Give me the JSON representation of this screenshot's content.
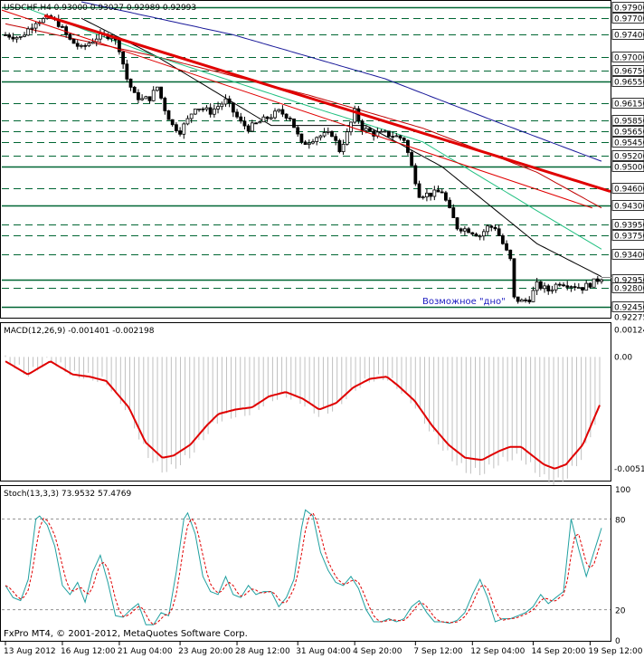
{
  "colors": {
    "background": "#ffffff",
    "candle": "#000000",
    "hline": "#006633",
    "trendline": "#e00000",
    "ma_black": "#000000",
    "ma_red": "#c00000",
    "ma_green": "#20c080",
    "ma_blue": "#1a1a9a",
    "macd_hist": "#c0c0c0",
    "macd_signal": "#e00000",
    "stoch_main": "#20a0a0",
    "stoch_signal": "#e00000",
    "annotation": "#1a1ac0"
  },
  "price_panel": {
    "title": "USDCHF,H4  0.93000 0.93027 0.92989 0.92993",
    "annotation": "Возможное \"дно\"",
    "ylim": [
      0.9227,
      0.98
    ],
    "current_price": "0.92993",
    "levels": [
      {
        "label": "0.97900",
        "value": 0.979,
        "style": "solid"
      },
      {
        "label": "0.97700",
        "value": 0.977,
        "style": "dashed"
      },
      {
        "label": "0.97400",
        "value": 0.974,
        "style": "dashed"
      },
      {
        "label": "0.97000",
        "value": 0.97,
        "style": "dashed"
      },
      {
        "label": "0.96750",
        "value": 0.9675,
        "style": "dashed"
      },
      {
        "label": "0.96550",
        "value": 0.9655,
        "style": "solid"
      },
      {
        "label": "0.96150",
        "value": 0.9615,
        "style": "dashed"
      },
      {
        "label": "0.95850",
        "value": 0.9585,
        "style": "dashed"
      },
      {
        "label": "0.95650",
        "value": 0.9565,
        "style": "dashed"
      },
      {
        "label": "0.95450",
        "value": 0.9545,
        "style": "dashed"
      },
      {
        "label": "0.95200",
        "value": 0.952,
        "style": "dashed"
      },
      {
        "label": "0.95000",
        "value": 0.95,
        "style": "solid"
      },
      {
        "label": "0.94600",
        "value": 0.946,
        "style": "dashed"
      },
      {
        "label": "0.94300",
        "value": 0.943,
        "style": "solid"
      },
      {
        "label": "0.93950",
        "value": 0.9395,
        "style": "dashed"
      },
      {
        "label": "0.93750",
        "value": 0.9375,
        "style": "dashed"
      },
      {
        "label": "0.93400",
        "value": 0.934,
        "style": "dashed"
      },
      {
        "label": "0.92950",
        "value": 0.9295,
        "style": "solid"
      },
      {
        "label": "0.92800",
        "value": 0.928,
        "style": "dashed"
      },
      {
        "label": "0.92450",
        "value": 0.9245,
        "style": "solid"
      }
    ],
    "extra_axis_labels": [
      {
        "label": "0.92275",
        "value": 0.92275
      }
    ],
    "trendlines": [
      {
        "x1": 0.07,
        "y1": 0.9775,
        "x2": 1.0,
        "y2": 0.9455,
        "width": 3
      },
      {
        "x1": 0.0,
        "y1": 0.9785,
        "x2": 0.97,
        "y2": 0.9425,
        "width": 1
      }
    ]
  },
  "macd_panel": {
    "title": "MACD(12,26,9) -0.001401 -0.002198",
    "ylim": [
      -0.0056,
      0.0015
    ],
    "axis_labels": [
      {
        "label": "0.00124",
        "value": 0.00124
      },
      {
        "label": "0.00",
        "value": 0.0
      },
      {
        "label": "-0.00510",
        "value": -0.0051
      }
    ]
  },
  "stoch_panel": {
    "title": "Stoch(13,3,3) 73.9532 57.4769",
    "ylim": [
      0,
      100
    ],
    "levels": [
      80,
      20
    ],
    "axis_labels": [
      {
        "label": "100",
        "value": 100
      },
      {
        "label": "80",
        "value": 80
      },
      {
        "label": "20",
        "value": 20
      },
      {
        "label": "0",
        "value": 0
      }
    ],
    "copyright": "FxPro MT4, © 2001-2012, MetaQuotes Software Corp."
  },
  "chart_data": {
    "type": "candlestick",
    "symbol": "USDCHF",
    "timeframe": "H4",
    "x_ticks": [
      {
        "label": "13 Aug 2012",
        "index": 0
      },
      {
        "label": "16 Aug 12:00",
        "index": 15
      },
      {
        "label": "21 Aug 04:00",
        "index": 30
      },
      {
        "label": "23 Aug 20:00",
        "index": 46
      },
      {
        "label": "28 Aug 12:00",
        "index": 61
      },
      {
        "label": "31 Aug 04:00",
        "index": 77
      },
      {
        "label": "4 Sep 20:00",
        "index": 92
      },
      {
        "label": "7 Sep 12:00",
        "index": 108
      },
      {
        "label": "12 Sep 04:00",
        "index": 123
      },
      {
        "label": "14 Sep 20:00",
        "index": 139
      },
      {
        "label": "19 Sep 12:00",
        "index": 154
      }
    ],
    "close_anchors": [
      [
        0,
        0.974
      ],
      [
        4,
        0.9735
      ],
      [
        8,
        0.9765
      ],
      [
        12,
        0.977
      ],
      [
        14,
        0.976
      ],
      [
        17,
        0.973
      ],
      [
        20,
        0.9715
      ],
      [
        24,
        0.9735
      ],
      [
        28,
        0.974
      ],
      [
        30,
        0.9715
      ],
      [
        32,
        0.966
      ],
      [
        34,
        0.963
      ],
      [
        36,
        0.9622
      ],
      [
        38,
        0.9625
      ],
      [
        40,
        0.9645
      ],
      [
        42,
        0.9605
      ],
      [
        44,
        0.9575
      ],
      [
        46,
        0.9565
      ],
      [
        48,
        0.9585
      ],
      [
        50,
        0.961
      ],
      [
        54,
        0.96
      ],
      [
        58,
        0.962
      ],
      [
        60,
        0.96
      ],
      [
        62,
        0.958
      ],
      [
        64,
        0.957
      ],
      [
        68,
        0.9585
      ],
      [
        72,
        0.96
      ],
      [
        75,
        0.959
      ],
      [
        78,
        0.954
      ],
      [
        82,
        0.9555
      ],
      [
        86,
        0.956
      ],
      [
        88,
        0.953
      ],
      [
        90,
        0.956
      ],
      [
        92,
        0.96
      ],
      [
        94,
        0.957
      ],
      [
        97,
        0.956
      ],
      [
        100,
        0.956
      ],
      [
        103,
        0.9555
      ],
      [
        105,
        0.955
      ],
      [
        107,
        0.95
      ],
      [
        109,
        0.945
      ],
      [
        112,
        0.945
      ],
      [
        115,
        0.9455
      ],
      [
        117,
        0.942
      ],
      [
        119,
        0.939
      ],
      [
        122,
        0.9385
      ],
      [
        125,
        0.9375
      ],
      [
        127,
        0.939
      ],
      [
        129,
        0.939
      ],
      [
        131,
        0.936
      ],
      [
        133,
        0.933
      ],
      [
        134,
        0.926
      ],
      [
        136,
        0.9255
      ],
      [
        138,
        0.926
      ],
      [
        140,
        0.9285
      ],
      [
        143,
        0.9275
      ],
      [
        146,
        0.929
      ],
      [
        149,
        0.9285
      ],
      [
        152,
        0.928
      ],
      [
        155,
        0.929
      ],
      [
        157,
        0.9299
      ]
    ],
    "moving_averages": [
      {
        "color": "#000000",
        "points": [
          [
            20,
            0.977
          ],
          [
            40,
            0.97
          ],
          [
            70,
            0.9575
          ],
          [
            95,
            0.9575
          ],
          [
            115,
            0.95
          ],
          [
            140,
            0.936
          ],
          [
            157,
            0.93
          ]
        ]
      },
      {
        "color": "#c00000",
        "points": [
          [
            0,
            0.976
          ],
          [
            40,
            0.97
          ],
          [
            80,
            0.963
          ],
          [
            110,
            0.957
          ],
          [
            140,
            0.949
          ],
          [
            157,
            0.9425
          ]
        ]
      },
      {
        "color": "#20c080",
        "points": [
          [
            5,
            0.979
          ],
          [
            40,
            0.97
          ],
          [
            80,
            0.961
          ],
          [
            110,
            0.9545
          ],
          [
            140,
            0.942
          ],
          [
            157,
            0.935
          ]
        ]
      },
      {
        "color": "#1a1a9a",
        "points": [
          [
            20,
            0.98
          ],
          [
            60,
            0.974
          ],
          [
            100,
            0.966
          ],
          [
            130,
            0.958
          ],
          [
            157,
            0.951
          ]
        ]
      }
    ],
    "macd_signal_anchors": [
      [
        0,
        -0.0002
      ],
      [
        4,
        -0.0008
      ],
      [
        8,
        -0.0002
      ],
      [
        12,
        -0.0008
      ],
      [
        15,
        -0.0009
      ],
      [
        18,
        -0.0011
      ],
      [
        22,
        -0.0023
      ],
      [
        25,
        -0.0039
      ],
      [
        28,
        -0.0046
      ],
      [
        30,
        -0.0045
      ],
      [
        33,
        -0.004
      ],
      [
        36,
        -0.0031
      ],
      [
        38,
        -0.0026
      ],
      [
        41,
        -0.0024
      ],
      [
        44,
        -0.0023
      ],
      [
        47,
        -0.0018
      ],
      [
        50,
        -0.0016
      ],
      [
        53,
        -0.0019
      ],
      [
        56,
        -0.0024
      ],
      [
        59,
        -0.0021
      ],
      [
        62,
        -0.0014
      ],
      [
        65,
        -0.001
      ],
      [
        68,
        -0.0009
      ],
      [
        70,
        -0.0013
      ],
      [
        73,
        -0.002
      ],
      [
        76,
        -0.0031
      ],
      [
        79,
        -0.004
      ],
      [
        82,
        -0.0046
      ],
      [
        85,
        -0.0047
      ],
      [
        88,
        -0.0043
      ],
      [
        90,
        -0.0041
      ],
      [
        92,
        -0.0041
      ],
      [
        94,
        -0.0045
      ],
      [
        96,
        -0.0049
      ],
      [
        98,
        -0.0051
      ],
      [
        100,
        -0.0049
      ],
      [
        103,
        -0.004
      ],
      [
        105,
        -0.0028
      ],
      [
        106,
        -0.0022
      ]
    ],
    "stoch_main_anchors": [
      [
        0,
        36
      ],
      [
        2,
        28
      ],
      [
        4,
        26
      ],
      [
        6,
        40
      ],
      [
        8,
        80
      ],
      [
        9,
        82
      ],
      [
        11,
        76
      ],
      [
        13,
        62
      ],
      [
        15,
        36
      ],
      [
        17,
        30
      ],
      [
        19,
        38
      ],
      [
        21,
        25
      ],
      [
        23,
        45
      ],
      [
        25,
        56
      ],
      [
        27,
        38
      ],
      [
        29,
        16
      ],
      [
        31,
        15
      ],
      [
        33,
        20
      ],
      [
        35,
        24
      ],
      [
        37,
        10
      ],
      [
        39,
        10
      ],
      [
        41,
        18
      ],
      [
        43,
        16
      ],
      [
        45,
        45
      ],
      [
        47,
        80
      ],
      [
        48,
        84
      ],
      [
        50,
        70
      ],
      [
        52,
        42
      ],
      [
        54,
        32
      ],
      [
        56,
        30
      ],
      [
        58,
        42
      ],
      [
        60,
        30
      ],
      [
        62,
        28
      ],
      [
        64,
        36
      ],
      [
        66,
        30
      ],
      [
        68,
        32
      ],
      [
        70,
        32
      ],
      [
        72,
        22
      ],
      [
        74,
        28
      ],
      [
        76,
        40
      ],
      [
        78,
        74
      ],
      [
        79,
        86
      ],
      [
        81,
        82
      ],
      [
        83,
        58
      ],
      [
        85,
        46
      ],
      [
        87,
        38
      ],
      [
        89,
        36
      ],
      [
        91,
        42
      ],
      [
        93,
        34
      ],
      [
        95,
        20
      ],
      [
        97,
        12
      ],
      [
        99,
        12
      ],
      [
        101,
        14
      ],
      [
        103,
        12
      ],
      [
        105,
        14
      ],
      [
        107,
        22
      ],
      [
        109,
        26
      ],
      [
        111,
        18
      ],
      [
        113,
        12
      ],
      [
        115,
        12
      ],
      [
        117,
        11
      ],
      [
        119,
        13
      ],
      [
        121,
        18
      ],
      [
        123,
        30
      ],
      [
        125,
        40
      ],
      [
        127,
        28
      ],
      [
        129,
        12
      ],
      [
        131,
        14
      ],
      [
        133,
        14
      ],
      [
        135,
        16
      ],
      [
        137,
        18
      ],
      [
        139,
        22
      ],
      [
        141,
        30
      ],
      [
        143,
        24
      ],
      [
        145,
        28
      ],
      [
        147,
        32
      ],
      [
        149,
        80
      ],
      [
        151,
        60
      ],
      [
        153,
        42
      ],
      [
        155,
        58
      ],
      [
        157,
        74
      ]
    ]
  }
}
